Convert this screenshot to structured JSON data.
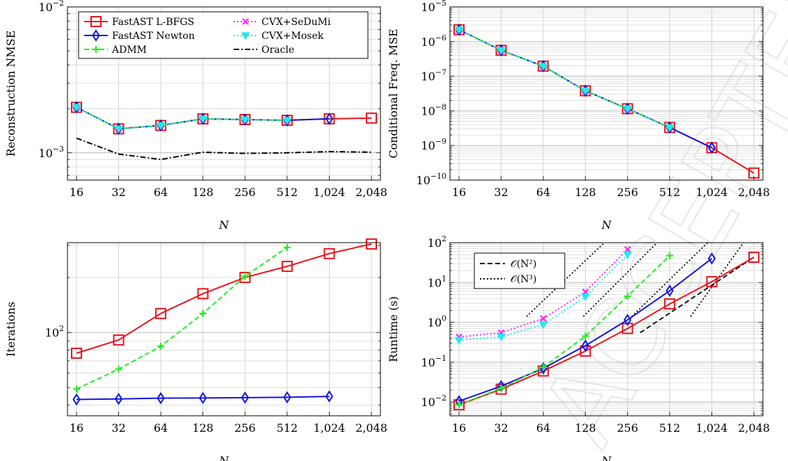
{
  "watermark": "ACCEPTED MANUSCRIPT",
  "colors": {
    "fastast_lbfgs": "#e8141b",
    "fastast_newton": "#1414dc",
    "admm": "#22ee22",
    "cvx_sedumi": "#ff22ff",
    "cvx_mosek": "#22e8f0",
    "oracle": "#000000",
    "complexity": "#000000"
  },
  "chart_data": [
    {
      "type": "line",
      "id": "nmse",
      "title": "",
      "xlabel": "N",
      "ylabel": "Reconstruction NMSE",
      "yscale": "log",
      "ylim": [
        0.00065,
        0.01
      ],
      "categories": [
        "16",
        "32",
        "64",
        "128",
        "256",
        "512",
        "1,024",
        "2,048"
      ],
      "y_ticks": [
        {
          "value": 0.001,
          "base": "10",
          "exp": "−3"
        },
        {
          "value": 0.01,
          "base": "10",
          "exp": "−2"
        }
      ],
      "grid": true,
      "legend": "top",
      "series": [
        {
          "name": "FastAST L-BFGS",
          "key": "fastast_lbfgs",
          "marker": "square",
          "dash": "solid",
          "values": [
            0.00205,
            0.00146,
            0.00154,
            0.00171,
            0.00169,
            0.00167,
            0.00171,
            0.00173
          ]
        },
        {
          "name": "FastAST Newton",
          "key": "fastast_newton",
          "marker": "diamond",
          "dash": "solid",
          "values": [
            0.00205,
            0.00146,
            0.00154,
            0.00171,
            0.00169,
            0.00167,
            0.00171,
            null
          ]
        },
        {
          "name": "ADMM",
          "key": "admm",
          "marker": "plus",
          "dash": "dashed",
          "values": [
            0.00205,
            0.00146,
            0.00154,
            0.00171,
            0.00169,
            0.00167,
            null,
            null
          ]
        },
        {
          "name": "CVX+SeDuMi",
          "key": "cvx_sedumi",
          "marker": "x",
          "dash": "dotted",
          "values": [
            0.00205,
            0.00146,
            0.00154,
            0.00171,
            0.00169,
            0.00167,
            null,
            null
          ]
        },
        {
          "name": "CVX+Mosek",
          "key": "cvx_mosek",
          "marker": "triangle",
          "dash": "dotted",
          "values": [
            0.00205,
            0.00146,
            0.00154,
            0.00171,
            0.00169,
            0.00167,
            null,
            null
          ]
        },
        {
          "name": "Oracle",
          "key": "oracle",
          "marker": "none",
          "dash": "dashdot",
          "values": [
            0.00126,
            0.00098,
            0.0009,
            0.00101,
            0.00099,
            0.001,
            0.00102,
            0.00101
          ]
        }
      ]
    },
    {
      "type": "line",
      "id": "cond_mse",
      "title": "",
      "xlabel": "N",
      "ylabel": "Conditional Freq. MSE",
      "yscale": "log",
      "ylim": [
        1e-10,
        1e-05
      ],
      "categories": [
        "16",
        "32",
        "64",
        "128",
        "256",
        "512",
        "1,024",
        "2,048"
      ],
      "y_ticks": [
        {
          "value": 1e-10,
          "base": "10",
          "exp": "−10"
        },
        {
          "value": 1e-09,
          "base": "10",
          "exp": "−9"
        },
        {
          "value": 1e-08,
          "base": "10",
          "exp": "−8"
        },
        {
          "value": 1e-07,
          "base": "10",
          "exp": "−7"
        },
        {
          "value": 1e-06,
          "base": "10",
          "exp": "−6"
        },
        {
          "value": 1e-05,
          "base": "10",
          "exp": "−5"
        }
      ],
      "grid": true,
      "legend": "none",
      "series": [
        {
          "name": "FastAST L-BFGS",
          "key": "fastast_lbfgs",
          "marker": "square",
          "dash": "solid",
          "values": [
            2.2e-06,
            5.6e-07,
            1.95e-07,
            3.8e-08,
            1.15e-08,
            3.3e-09,
            8.6e-10,
            1.6e-10
          ]
        },
        {
          "name": "FastAST Newton",
          "key": "fastast_newton",
          "marker": "diamond",
          "dash": "solid",
          "values": [
            2.2e-06,
            5.6e-07,
            1.95e-07,
            3.8e-08,
            1.15e-08,
            3.3e-09,
            8.6e-10,
            null
          ]
        },
        {
          "name": "ADMM",
          "key": "admm",
          "marker": "plus",
          "dash": "dashed",
          "values": [
            2.2e-06,
            5.6e-07,
            1.95e-07,
            3.8e-08,
            1.15e-08,
            3.3e-09,
            null,
            null
          ]
        },
        {
          "name": "CVX+SeDuMi",
          "key": "cvx_sedumi",
          "marker": "x",
          "dash": "dotted",
          "values": [
            2.2e-06,
            5.6e-07,
            1.95e-07,
            3.8e-08,
            1.15e-08,
            3.3e-09,
            null,
            null
          ]
        },
        {
          "name": "CVX+Mosek",
          "key": "cvx_mosek",
          "marker": "triangle",
          "dash": "dotted",
          "values": [
            2.2e-06,
            5.6e-07,
            1.95e-07,
            3.8e-08,
            1.15e-08,
            3.3e-09,
            null,
            null
          ]
        }
      ]
    },
    {
      "type": "line",
      "id": "iterations",
      "title": "",
      "xlabel": "N",
      "ylabel": "Iterations",
      "yscale": "log",
      "ylim": [
        35,
        310
      ],
      "categories": [
        "16",
        "32",
        "64",
        "128",
        "256",
        "512",
        "1,024",
        "2,048"
      ],
      "y_ticks": [
        {
          "value": 100,
          "base": "10",
          "exp": "2"
        }
      ],
      "grid": true,
      "legend": "none",
      "series": [
        {
          "name": "FastAST L-BFGS",
          "key": "fastast_lbfgs",
          "marker": "square",
          "dash": "solid",
          "values": [
            77,
            91,
            127,
            163,
            200,
            230,
            270,
            305
          ]
        },
        {
          "name": "FastAST Newton",
          "key": "fastast_newton",
          "marker": "diamond",
          "dash": "solid",
          "values": [
            43,
            43.3,
            43.7,
            43.8,
            44,
            44.2,
            44.7,
            null
          ]
        },
        {
          "name": "ADMM",
          "key": "admm",
          "marker": "plus",
          "dash": "dashed",
          "values": [
            49,
            63,
            84,
            127,
            203,
            292,
            null,
            null
          ]
        }
      ]
    },
    {
      "type": "line",
      "id": "runtime",
      "title": "",
      "xlabel": "N",
      "ylabel": "Runtime (s)",
      "yscale": "log",
      "ylim": [
        0.0045,
        100
      ],
      "categories": [
        "16",
        "32",
        "64",
        "128",
        "256",
        "512",
        "1,024",
        "2,048"
      ],
      "y_ticks": [
        {
          "value": 0.01,
          "base": "10",
          "exp": "−2"
        },
        {
          "value": 0.1,
          "base": "10",
          "exp": "−1"
        },
        {
          "value": 1,
          "base": "10",
          "exp": "0"
        },
        {
          "value": 10,
          "base": "10",
          "exp": "1"
        },
        {
          "value": 100,
          "base": "10",
          "exp": "2"
        }
      ],
      "grid": true,
      "legend": "top-left",
      "series": [
        {
          "name": "FastAST L-BFGS",
          "key": "fastast_lbfgs",
          "marker": "square",
          "dash": "solid",
          "values": [
            0.0085,
            0.021,
            0.06,
            0.19,
            0.7,
            2.9,
            10.5,
            43
          ]
        },
        {
          "name": "FastAST Newton",
          "key": "fastast_newton",
          "marker": "diamond",
          "dash": "solid",
          "values": [
            0.0105,
            0.025,
            0.07,
            0.26,
            1.15,
            6.2,
            40,
            null
          ]
        },
        {
          "name": "ADMM",
          "key": "admm",
          "marker": "plus",
          "dash": "dashed",
          "values": [
            0.0085,
            0.022,
            0.075,
            0.45,
            4.5,
            47,
            null,
            null
          ]
        },
        {
          "name": "CVX+SeDuMi",
          "key": "cvx_sedumi",
          "marker": "x",
          "dash": "dotted",
          "values": [
            0.43,
            0.55,
            1.25,
            5.8,
            68,
            null,
            null,
            null
          ]
        },
        {
          "name": "CVX+Mosek",
          "key": "cvx_mosek",
          "marker": "triangle",
          "dash": "dotted",
          "values": [
            0.36,
            0.43,
            0.88,
            4.4,
            50,
            null,
            null,
            null
          ]
        }
      ],
      "reference_lines": [
        {
          "name": "𝒪(N²)",
          "key": "complexity",
          "dash": "dashed",
          "points": [
            [
              4.3,
              0.55
            ],
            [
              7,
              43
            ]
          ]
        },
        {
          "name": "𝒪(N³)",
          "key": "complexity",
          "dash": "dotted",
          "points": [
            [
              2.95,
              1.4
            ],
            [
              4.7,
              100
            ]
          ]
        },
        {
          "name": "",
          "key": "complexity",
          "dash": "dotted",
          "points": [
            [
              1.6,
              1.4
            ],
            [
              3.45,
              100
            ]
          ]
        },
        {
          "name": "",
          "key": "complexity",
          "dash": "dotted",
          "points": [
            [
              4.1,
              1.4
            ],
            [
              5.9,
              100
            ]
          ]
        },
        {
          "name": "",
          "key": "complexity",
          "dash": "dotted",
          "points": [
            [
              5.5,
              1.4
            ],
            [
              6.75,
              100
            ]
          ]
        }
      ],
      "legend_entries": [
        {
          "name": "𝒪(N²)",
          "dash": "dashed"
        },
        {
          "name": "𝒪(N³)",
          "dash": "dotted"
        }
      ]
    }
  ]
}
